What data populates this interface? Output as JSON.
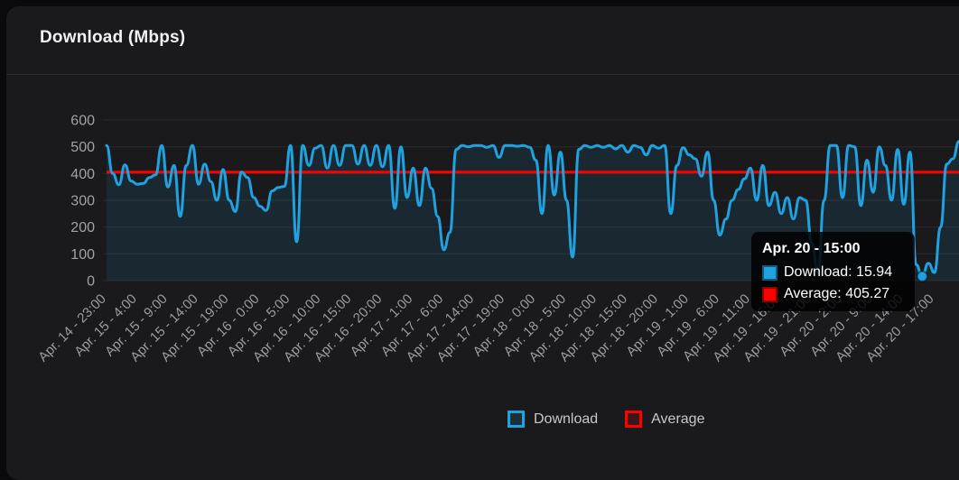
{
  "header": {
    "title": "Download (Mbps)"
  },
  "legend": [
    {
      "label": "Download",
      "color": "#1fa2e0"
    },
    {
      "label": "Average",
      "color": "#ff0000"
    }
  ],
  "tooltip": {
    "title": "Apr. 20 - 15:00",
    "rows": [
      {
        "label": "Download",
        "value": "15.94",
        "text": "Download: 15.94",
        "color": "#1fa2e0"
      },
      {
        "label": "Average",
        "value": "405.27",
        "text": "Average: 405.27",
        "color": "#ff0000"
      }
    ]
  },
  "colors": {
    "page_bg": "#0a0a0c",
    "card_bg": "#1a1a1d",
    "download": "#1fa2e0",
    "average": "#ff0000",
    "grid": "rgba(255,255,255,0.08)",
    "area_fill": "rgba(31,162,224,0.10)",
    "axis_text": "#9c9ca0"
  },
  "chart_data": {
    "type": "line",
    "title": "Download (Mbps)",
    "xlabel": "",
    "ylabel": "",
    "ylim": [
      0,
      600
    ],
    "yticks": [
      0,
      100,
      200,
      300,
      400,
      500,
      600
    ],
    "grid": true,
    "legend_position": "bottom",
    "tick_every": 5,
    "x_tick_labels": [
      "Apr. 14 - 23:00",
      "Apr. 15 - 4:00",
      "Apr. 15 - 9:00",
      "Apr. 15 - 14:00",
      "Apr. 15 - 19:00",
      "Apr. 16 - 0:00",
      "Apr. 16 - 5:00",
      "Apr. 16 - 10:00",
      "Apr. 16 - 15:00",
      "Apr. 16 - 20:00",
      "Apr. 17 - 1:00",
      "Apr. 17 - 6:00",
      "Apr. 17 - 14:00",
      "Apr. 17 - 19:00",
      "Apr. 18 - 0:00",
      "Apr. 18 - 5:00",
      "Apr. 18 - 10:00",
      "Apr. 18 - 15:00",
      "Apr. 18 - 20:00",
      "Apr. 19 - 1:00",
      "Apr. 19 - 6:00",
      "Apr. 19 - 11:00",
      "Apr. 19 - 16:00",
      "Apr. 19 - 21:00",
      "Apr. 20 - 2:00",
      "Apr. 20 - 9:00",
      "Apr. 20 - 14:00",
      "Apr. 20 - 17:00"
    ],
    "series": [
      {
        "name": "Download",
        "color": "#1fa2e0",
        "style": "area-line",
        "values": [
          505,
          400,
          358,
          432,
          372,
          360,
          363,
          385,
          395,
          505,
          350,
          430,
          240,
          430,
          505,
          360,
          435,
          370,
          300,
          415,
          300,
          258,
          405,
          385,
          310,
          278,
          262,
          335,
          348,
          352,
          505,
          145,
          505,
          430,
          495,
          505,
          420,
          505,
          430,
          505,
          505,
          435,
          505,
          430,
          505,
          425,
          505,
          270,
          500,
          310,
          420,
          280,
          420,
          345,
          240,
          115,
          180,
          490,
          505,
          500,
          505,
          505,
          498,
          505,
          460,
          505,
          505,
          502,
          505,
          498,
          450,
          250,
          505,
          320,
          480,
          300,
          88,
          490,
          505,
          498,
          505,
          498,
          505,
          492,
          505,
          480,
          505,
          498,
          470,
          505,
          495,
          505,
          250,
          430,
          497,
          470,
          455,
          390,
          480,
          300,
          170,
          230,
          300,
          340,
          380,
          420,
          300,
          430,
          280,
          330,
          250,
          310,
          230,
          310,
          300,
          140,
          30,
          300,
          505,
          505,
          310,
          505,
          500,
          280,
          450,
          330,
          500,
          430,
          300,
          490,
          285,
          480,
          60,
          15.94,
          65,
          30,
          200,
          435,
          455,
          520
        ]
      },
      {
        "name": "Average",
        "color": "#ff0000",
        "style": "horizontal-line",
        "value": 405.27
      }
    ],
    "hover_point": {
      "index": 133,
      "x_label": "Apr. 20 - 15:00",
      "download": 15.94,
      "average": 405.27
    }
  }
}
